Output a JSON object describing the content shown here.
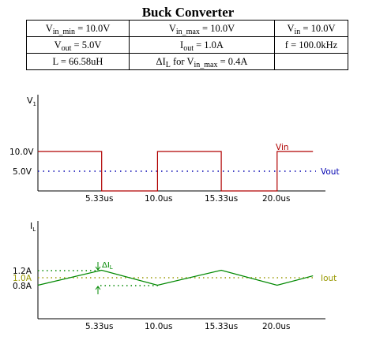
{
  "title": "Buck Converter",
  "params": {
    "vin_min": {
      "sym": "V",
      "sub": "in_min",
      "rest": " = 10.0V"
    },
    "vin_max": {
      "sym": "V",
      "sub": "in_max",
      "rest": " = 10.0V"
    },
    "vin": {
      "sym": "V",
      "sub": "in",
      "rest": " = 10.0V"
    },
    "vout": {
      "sym": "V",
      "sub": "out",
      "rest": " = 5.0V"
    },
    "iout": {
      "sym": "I",
      "sub": "out",
      "rest": " = 1.0A"
    },
    "f": "f = 100.0kHz",
    "L": "L = 66.58uH",
    "ripple": {
      "pre": "ΔI",
      "sub1": "L",
      "mid": " for V",
      "sub2": "in_max",
      "rest": " = 0.4A"
    }
  },
  "voltage_plot": {
    "ylabel_sym": "V",
    "ylabel_sub": "1",
    "yticks": [
      "10.0V",
      "5.0V"
    ],
    "xticks": [
      "5.33us",
      "10.0us",
      "15.33us",
      "20.0us"
    ],
    "vin_label": "Vin",
    "vout_label": "Vout",
    "color_vin": "#b00000",
    "color_vout": "#0000b0"
  },
  "current_plot": {
    "ylabel_sym": "I",
    "ylabel_sub": "L",
    "yticks": [
      "1.2A",
      "1.0A",
      "0.8A"
    ],
    "xticks": [
      "5.33us",
      "10.0us",
      "15.33us",
      "20.0us"
    ],
    "delta_label": "ΔI",
    "delta_sub": "L",
    "iout_label": "Iout",
    "color_il": "#008800",
    "color_iout": "#999900"
  },
  "chart_data": [
    {
      "type": "line",
      "x": [
        0,
        5.33,
        5.33,
        10.0,
        10.0,
        15.33,
        15.33,
        20.0,
        20.0,
        23.0
      ],
      "series": [
        {
          "name": "Vin",
          "values": [
            10,
            10,
            0,
            0,
            10,
            10,
            0,
            0,
            10,
            10
          ]
        },
        {
          "name": "Vout",
          "x": [
            0,
            23.0
          ],
          "values": [
            5,
            5
          ]
        }
      ],
      "xticks": [
        "5.33us",
        "10.0us",
        "15.33us",
        "20.0us"
      ],
      "yticks": [
        "10.0V",
        "5.0V"
      ],
      "ylabel": "V1"
    },
    {
      "type": "line",
      "x": [
        0,
        5.33,
        10.0,
        15.33,
        20.0,
        23.0
      ],
      "series": [
        {
          "name": "IL",
          "values": [
            0.8,
            1.2,
            0.8,
            1.2,
            0.8,
            1.05
          ]
        },
        {
          "name": "Iout",
          "x": [
            0,
            23.0
          ],
          "values": [
            1.0,
            1.0
          ]
        }
      ],
      "xticks": [
        "5.33us",
        "10.0us",
        "15.33us",
        "20.0us"
      ],
      "yticks": [
        "1.2A",
        "1.0A",
        "0.8A"
      ],
      "ylabel": "IL"
    }
  ]
}
